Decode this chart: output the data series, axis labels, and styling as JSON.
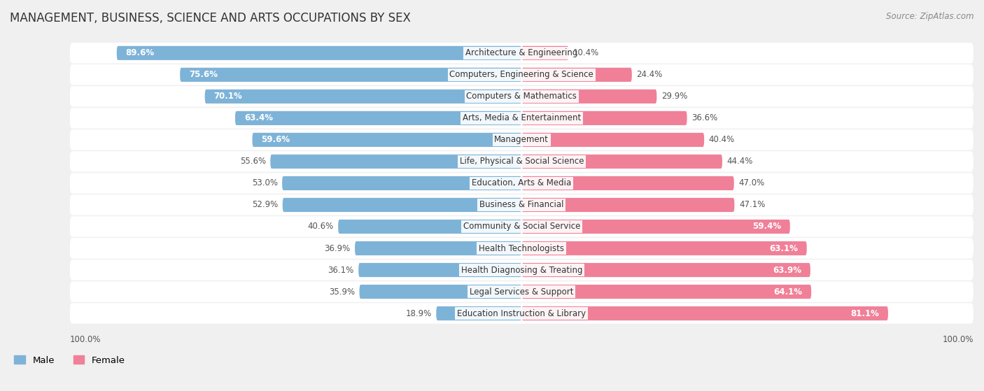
{
  "title": "MANAGEMENT, BUSINESS, SCIENCE AND ARTS OCCUPATIONS BY SEX",
  "source": "Source: ZipAtlas.com",
  "categories": [
    "Architecture & Engineering",
    "Computers, Engineering & Science",
    "Computers & Mathematics",
    "Arts, Media & Entertainment",
    "Management",
    "Life, Physical & Social Science",
    "Education, Arts & Media",
    "Business & Financial",
    "Community & Social Service",
    "Health Technologists",
    "Health Diagnosing & Treating",
    "Legal Services & Support",
    "Education Instruction & Library"
  ],
  "male_pct": [
    89.6,
    75.6,
    70.1,
    63.4,
    59.6,
    55.6,
    53.0,
    52.9,
    40.6,
    36.9,
    36.1,
    35.9,
    18.9
  ],
  "female_pct": [
    10.4,
    24.4,
    29.9,
    36.6,
    40.4,
    44.4,
    47.0,
    47.1,
    59.4,
    63.1,
    63.9,
    64.1,
    81.1
  ],
  "male_color": "#7EB3D8",
  "female_color": "#F08098",
  "bg_color": "#f0f0f0",
  "title_fontsize": 12,
  "label_fontsize": 8.5,
  "cat_fontsize": 8.5,
  "legend_fontsize": 9.5,
  "source_fontsize": 8.5
}
